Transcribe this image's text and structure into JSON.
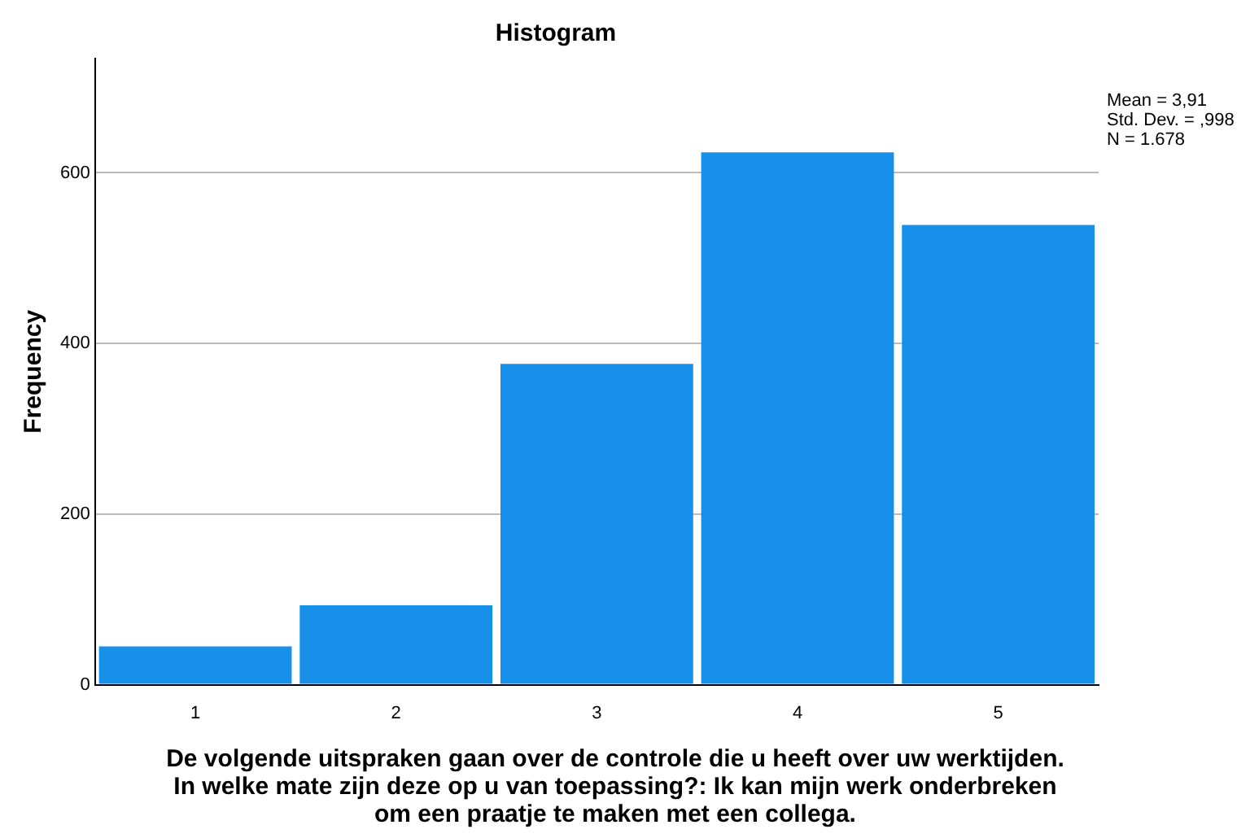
{
  "chart_data": {
    "type": "histogram",
    "title": "Histogram",
    "xlabel": "De volgende uitspraken gaan over de controle die u heeft over uw werktijden. In welke mate zijn deze op u van toepassing?: Ik kan mijn werk onderbreken om een praatje te maken met een collega.",
    "ylabel": "Frequency",
    "bins": [
      0.5,
      1.5,
      2.5,
      3.5,
      4.5,
      5.5
    ],
    "values": [
      45,
      93,
      376,
      624,
      539
    ],
    "color": "#1690e8",
    "xlim": [
      0.5,
      5.5
    ],
    "xticks": [
      1,
      2,
      3,
      4,
      5
    ],
    "ylim": [
      0,
      734
    ],
    "yticks": [
      0,
      200,
      400,
      600
    ],
    "grid": "y",
    "annotations": [
      "Mean = 3,91",
      "Std. Dev. = ,998",
      "N = 1.678"
    ]
  }
}
